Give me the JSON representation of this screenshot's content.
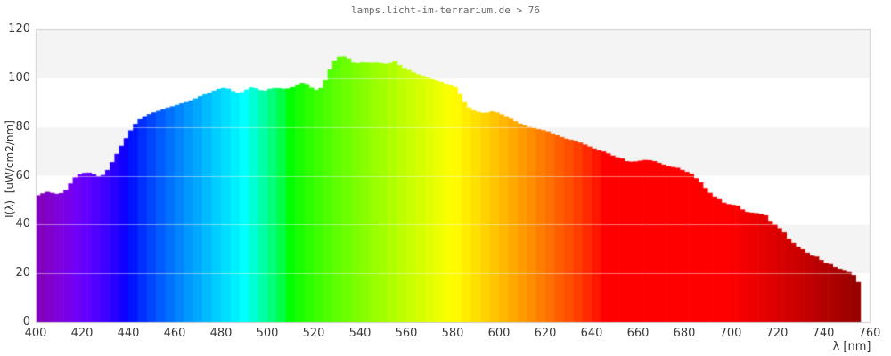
{
  "page": {
    "kind": "spectrum-chart-screenshot",
    "background": "#ffffff"
  },
  "colors": {
    "band_gray": "#f4f4f4",
    "band_white": "#ffffff",
    "plot_border": "#cccccc",
    "gridline_over_fill": "rgba(255,255,255,0.45)",
    "title_text": "#666666",
    "tick_text": "#3a3a3a",
    "axis_title_text": "#333333"
  },
  "chart_data": {
    "type": "area",
    "subtype": "spectral-power-distribution",
    "title": "lamps.licht-im-terrarium.de > 76",
    "xlabel": "λ [nm]",
    "ylabel": "I(λ)  [uW/cm2/nm]",
    "xlim": [
      400,
      760
    ],
    "ylim": [
      0,
      120
    ],
    "x_ticks": [
      400,
      420,
      440,
      460,
      480,
      500,
      520,
      540,
      560,
      580,
      600,
      620,
      640,
      660,
      680,
      700,
      720,
      740,
      760
    ],
    "y_ticks": [
      0,
      20,
      40,
      60,
      80,
      100,
      120
    ],
    "grid": "horizontal bands every 20 units, alternating gray/white",
    "legend": "none",
    "fill_style": "visible-spectrum wavelength colors, quantized in 4 nm bands",
    "x_start": 400,
    "x_step": 2,
    "x_end": 754,
    "values": [
      52.0,
      52.8,
      53.4,
      53.0,
      52.6,
      52.9,
      54.2,
      56.8,
      59.3,
      60.6,
      61.2,
      61.3,
      60.6,
      59.8,
      60.3,
      62.4,
      65.6,
      69.0,
      72.3,
      75.4,
      78.6,
      81.3,
      83.2,
      84.4,
      85.3,
      86.0,
      86.6,
      87.3,
      88.0,
      88.5,
      89.1,
      89.7,
      90.2,
      90.9,
      91.7,
      92.6,
      93.4,
      94.1,
      94.9,
      95.6,
      96.0,
      95.7,
      94.7,
      94.0,
      94.3,
      95.3,
      96.2,
      95.9,
      95.1,
      94.9,
      95.6,
      96.0,
      95.9,
      95.7,
      95.8,
      96.3,
      97.3,
      98.1,
      97.6,
      96.1,
      95.2,
      96.0,
      99.2,
      103.6,
      107.2,
      108.8,
      108.9,
      108.1,
      106.4,
      106.2,
      106.5,
      106.4,
      106.3,
      106.4,
      106.2,
      105.9,
      106.2,
      107.0,
      105.4,
      104.2,
      103.4,
      102.4,
      101.6,
      101.0,
      100.4,
      99.7,
      99.1,
      98.5,
      97.8,
      97.1,
      96.4,
      93.5,
      90.2,
      88.0,
      86.8,
      86.2,
      85.8,
      85.9,
      86.4,
      86.0,
      85.2,
      84.4,
      83.4,
      82.4,
      81.4,
      80.6,
      80.0,
      79.6,
      79.1,
      78.7,
      78.2,
      77.4,
      76.6,
      75.9,
      75.2,
      74.8,
      74.4,
      73.6,
      72.8,
      72.0,
      71.2,
      70.5,
      70.0,
      69.2,
      68.3,
      67.6,
      67.1,
      66.0,
      65.8,
      65.9,
      66.2,
      66.5,
      66.4,
      66.0,
      65.3,
      64.6,
      64.0,
      63.6,
      63.3,
      62.4,
      61.6,
      60.9,
      59.0,
      57.3,
      55.0,
      53.0,
      51.5,
      50.4,
      49.0,
      48.4,
      48.1,
      47.8,
      46.2,
      45.2,
      44.9,
      44.7,
      44.4,
      43.8,
      41.5,
      40.0,
      38.5,
      36.8,
      34.2,
      32.5,
      31.0,
      29.9,
      28.5,
      27.3,
      26.9,
      25.5,
      24.2,
      23.8,
      22.6,
      21.9,
      21.4,
      20.5,
      19.3,
      16.5
    ]
  }
}
